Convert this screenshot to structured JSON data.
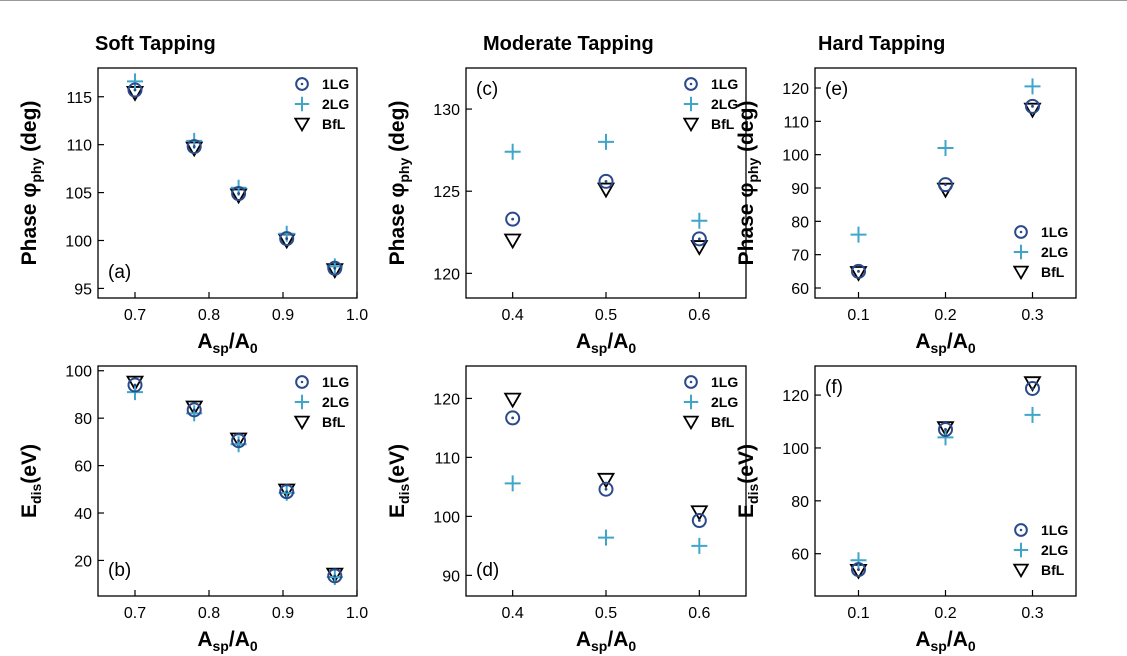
{
  "column_titles": [
    "Soft Tapping",
    "Moderate Tapping",
    "Hard Tapping"
  ],
  "colors": {
    "1LG": "#2b4a8c",
    "2LG": "#3fa6c9",
    "BfL": "#000000"
  },
  "chart_data": [
    {
      "id": "a",
      "type": "scatter",
      "panel_label": "(a)",
      "xlabel": "A_sp/A_0",
      "ylabel": "Phase φ_phy (deg)",
      "xlim": [
        0.65,
        1.0
      ],
      "ylim": [
        94,
        118
      ],
      "xticks": [
        0.7,
        0.8,
        0.9,
        1.0
      ],
      "xtick_labels": [
        "0.7",
        "0.8",
        "0.9",
        "1.0"
      ],
      "yticks": [
        95,
        100,
        105,
        110,
        115
      ],
      "ytick_labels": [
        "95",
        "100",
        "105",
        "110",
        "115"
      ],
      "legend": [
        "1LG",
        "2LG",
        "BfL"
      ],
      "legend_position": "top-right",
      "series": [
        {
          "name": "1LG",
          "marker": "circle-dot",
          "x": [
            0.7,
            0.78,
            0.84,
            0.905,
            0.97
          ],
          "y": [
            115.7,
            109.8,
            104.9,
            100.2,
            97.1
          ]
        },
        {
          "name": "2LG",
          "marker": "plus",
          "x": [
            0.7,
            0.78,
            0.84,
            0.905,
            0.97
          ],
          "y": [
            116.6,
            110.4,
            105.5,
            100.7,
            97.3
          ]
        },
        {
          "name": "BfL",
          "marker": "triangle-down",
          "x": [
            0.7,
            0.78,
            0.84,
            0.905,
            0.97
          ],
          "y": [
            115.4,
            109.6,
            104.7,
            100.0,
            96.9
          ]
        }
      ]
    },
    {
      "id": "c",
      "type": "scatter",
      "panel_label": "(c)",
      "xlabel": "A_sp/A_0",
      "ylabel": "Phase φ_phy (deg)",
      "xlim": [
        0.35,
        0.65
      ],
      "ylim": [
        118.5,
        132.5
      ],
      "xticks": [
        0.4,
        0.5,
        0.6
      ],
      "xtick_labels": [
        "0.4",
        "0.5",
        "0.6"
      ],
      "yticks": [
        120,
        125,
        130
      ],
      "ytick_labels": [
        "120",
        "125",
        "130"
      ],
      "legend": [
        "1LG",
        "2LG",
        "BfL"
      ],
      "legend_position": "top-right",
      "series": [
        {
          "name": "1LG",
          "marker": "circle-dot",
          "x": [
            0.4,
            0.5,
            0.6
          ],
          "y": [
            123.3,
            125.6,
            122.1
          ]
        },
        {
          "name": "2LG",
          "marker": "plus",
          "x": [
            0.4,
            0.5,
            0.6
          ],
          "y": [
            127.4,
            128.0,
            123.2
          ]
        },
        {
          "name": "BfL",
          "marker": "triangle-down",
          "x": [
            0.4,
            0.5,
            0.6
          ],
          "y": [
            122.0,
            125.1,
            121.6
          ]
        }
      ]
    },
    {
      "id": "e",
      "type": "scatter",
      "panel_label": "(e)",
      "xlabel": "A_sp/A_0",
      "ylabel": "Phase φ_phy (deg)",
      "xlim": [
        0.05,
        0.35
      ],
      "ylim": [
        57,
        126
      ],
      "xticks": [
        0.1,
        0.2,
        0.3
      ],
      "xtick_labels": [
        "0.1",
        "0.2",
        "0.3"
      ],
      "yticks": [
        60,
        70,
        80,
        90,
        100,
        110,
        120
      ],
      "ytick_labels": [
        "60",
        "70",
        "80",
        "90",
        "100",
        "110",
        "120"
      ],
      "legend": [
        "1LG",
        "2LG",
        "BfL"
      ],
      "legend_position": "bottom-right",
      "series": [
        {
          "name": "1LG",
          "marker": "circle-dot",
          "x": [
            0.1,
            0.2,
            0.3
          ],
          "y": [
            65.0,
            91.0,
            114.5
          ]
        },
        {
          "name": "2LG",
          "marker": "plus",
          "x": [
            0.1,
            0.2,
            0.3
          ],
          "y": [
            76.0,
            102.0,
            120.5
          ]
        },
        {
          "name": "BfL",
          "marker": "triangle-down",
          "x": [
            0.1,
            0.2,
            0.3
          ],
          "y": [
            64.5,
            89.5,
            113.5
          ]
        }
      ]
    },
    {
      "id": "b",
      "type": "scatter",
      "panel_label": "(b)",
      "xlabel": "A_sp/A_0",
      "ylabel": "E_dis(eV)",
      "xlim": [
        0.65,
        1.0
      ],
      "ylim": [
        5,
        102
      ],
      "xticks": [
        0.7,
        0.8,
        0.9,
        1.0
      ],
      "xtick_labels": [
        "0.7",
        "0.8",
        "0.9",
        "1.0"
      ],
      "yticks": [
        20,
        40,
        60,
        80,
        100
      ],
      "ytick_labels": [
        "20",
        "40",
        "60",
        "80",
        "100"
      ],
      "legend": [
        "1LG",
        "2LG",
        "BfL"
      ],
      "legend_position": "top-right",
      "series": [
        {
          "name": "1LG",
          "marker": "circle-dot",
          "x": [
            0.7,
            0.78,
            0.84,
            0.905,
            0.97
          ],
          "y": [
            94.0,
            83.5,
            70.5,
            49.0,
            13.5
          ]
        },
        {
          "name": "2LG",
          "marker": "plus",
          "x": [
            0.7,
            0.78,
            0.84,
            0.905,
            0.97
          ],
          "y": [
            91.0,
            82.0,
            69.0,
            48.5,
            13.0
          ]
        },
        {
          "name": "BfL",
          "marker": "triangle-down",
          "x": [
            0.7,
            0.78,
            0.84,
            0.905,
            0.97
          ],
          "y": [
            95.0,
            84.5,
            71.0,
            49.5,
            14.0
          ]
        }
      ]
    },
    {
      "id": "d",
      "type": "scatter",
      "panel_label": "(d)",
      "xlabel": "A_sp/A_0",
      "ylabel": "E_dis(eV)",
      "xlim": [
        0.35,
        0.65
      ],
      "ylim": [
        86.5,
        125.5
      ],
      "xticks": [
        0.4,
        0.5,
        0.6
      ],
      "xtick_labels": [
        "0.4",
        "0.5",
        "0.6"
      ],
      "yticks": [
        90,
        100,
        110,
        120
      ],
      "ytick_labels": [
        "90",
        "100",
        "110",
        "120"
      ],
      "legend": [
        "1LG",
        "2LG",
        "BfL"
      ],
      "legend_position": "top-right",
      "series": [
        {
          "name": "1LG",
          "marker": "circle-dot",
          "x": [
            0.4,
            0.5,
            0.6
          ],
          "y": [
            116.7,
            104.6,
            99.3
          ]
        },
        {
          "name": "2LG",
          "marker": "plus",
          "x": [
            0.4,
            0.5,
            0.6
          ],
          "y": [
            105.6,
            96.4,
            95.0
          ]
        },
        {
          "name": "BfL",
          "marker": "triangle-down",
          "x": [
            0.4,
            0.5,
            0.6
          ],
          "y": [
            119.8,
            106.2,
            100.7
          ]
        }
      ]
    },
    {
      "id": "f",
      "type": "scatter",
      "panel_label": "(f)",
      "xlabel": "A_sp/A_0",
      "ylabel": "E_dis(eV)",
      "xlim": [
        0.05,
        0.35
      ],
      "ylim": [
        44,
        131
      ],
      "xticks": [
        0.1,
        0.2,
        0.3
      ],
      "xtick_labels": [
        "0.1",
        "0.2",
        "0.3"
      ],
      "yticks": [
        60,
        80,
        100,
        120
      ],
      "ytick_labels": [
        "60",
        "80",
        "100",
        "120"
      ],
      "legend": [
        "1LG",
        "2LG",
        "BfL"
      ],
      "legend_position": "bottom-right",
      "series": [
        {
          "name": "1LG",
          "marker": "circle-dot",
          "x": [
            0.1,
            0.2,
            0.3
          ],
          "y": [
            54.0,
            107.0,
            122.5
          ]
        },
        {
          "name": "2LG",
          "marker": "plus",
          "x": [
            0.1,
            0.2,
            0.3
          ],
          "y": [
            57.5,
            104.0,
            112.5
          ]
        },
        {
          "name": "BfL",
          "marker": "triangle-down",
          "x": [
            0.1,
            0.2,
            0.3
          ],
          "y": [
            53.5,
            107.5,
            124.5
          ]
        }
      ]
    }
  ]
}
